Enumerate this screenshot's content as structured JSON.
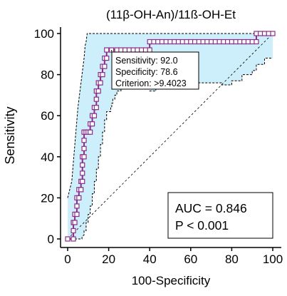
{
  "colors": {
    "ci_fill": "#cdeefb",
    "ci_line": "#000000",
    "roc_line": "#8b2b8b",
    "marker_fill": "#ffffff",
    "reference_line": "#000000"
  },
  "chart_data": {
    "type": "line",
    "title": "(11β-OH-An)/11ß-OH-Et",
    "xlabel": "100-Specificity",
    "ylabel": "Sensitivity",
    "xlim": [
      0,
      100
    ],
    "ylim": [
      0,
      100
    ],
    "xticks": [
      0,
      20,
      40,
      60,
      80,
      100
    ],
    "yticks": [
      0,
      20,
      40,
      60,
      80,
      100
    ],
    "grid": false,
    "series": [
      {
        "kind": "roc",
        "points": [
          [
            0,
            0
          ],
          [
            2.8,
            0
          ],
          [
            2.8,
            4
          ],
          [
            2.8,
            8
          ],
          [
            3.5,
            8
          ],
          [
            3.5,
            12
          ],
          [
            4.5,
            12
          ],
          [
            4.5,
            16
          ],
          [
            4.5,
            20
          ],
          [
            5.5,
            20
          ],
          [
            5.5,
            24
          ],
          [
            6.5,
            24
          ],
          [
            6.5,
            28
          ],
          [
            7.2,
            28
          ],
          [
            7.2,
            32
          ],
          [
            7.2,
            36
          ],
          [
            7.2,
            40
          ],
          [
            8,
            40
          ],
          [
            8,
            44
          ],
          [
            8,
            48
          ],
          [
            8,
            52
          ],
          [
            9,
            52
          ],
          [
            10,
            52
          ],
          [
            11,
            52
          ],
          [
            11,
            56
          ],
          [
            12,
            56
          ],
          [
            12,
            60
          ],
          [
            13,
            60
          ],
          [
            13,
            64
          ],
          [
            14,
            64
          ],
          [
            14,
            68
          ],
          [
            14,
            72
          ],
          [
            15,
            72
          ],
          [
            15,
            76
          ],
          [
            16,
            76
          ],
          [
            16,
            80
          ],
          [
            17,
            80
          ],
          [
            17,
            84
          ],
          [
            18,
            84
          ],
          [
            18,
            88
          ],
          [
            19,
            88
          ],
          [
            19,
            92
          ],
          [
            21.4,
            92
          ],
          [
            24,
            92
          ],
          [
            26,
            92
          ],
          [
            28,
            92
          ],
          [
            30,
            92
          ],
          [
            32,
            92
          ],
          [
            34,
            92
          ],
          [
            36,
            92
          ],
          [
            38,
            92
          ],
          [
            40,
            92
          ],
          [
            40,
            96
          ],
          [
            42,
            96
          ],
          [
            44,
            96
          ],
          [
            46,
            96
          ],
          [
            48,
            96
          ],
          [
            50,
            96
          ],
          [
            52,
            96
          ],
          [
            54,
            96
          ],
          [
            56,
            96
          ],
          [
            58,
            96
          ],
          [
            60,
            96
          ],
          [
            62,
            96
          ],
          [
            64,
            96
          ],
          [
            66,
            96
          ],
          [
            68,
            96
          ],
          [
            70,
            96
          ],
          [
            72,
            96
          ],
          [
            74,
            96
          ],
          [
            76,
            96
          ],
          [
            78,
            96
          ],
          [
            80,
            96
          ],
          [
            82,
            96
          ],
          [
            84,
            96
          ],
          [
            86,
            96
          ],
          [
            88,
            96
          ],
          [
            90,
            96
          ],
          [
            92,
            96
          ],
          [
            92,
            100
          ],
          [
            94,
            100
          ],
          [
            96,
            100
          ],
          [
            98,
            100
          ],
          [
            100,
            100
          ]
        ]
      },
      {
        "kind": "ci_upper",
        "points": [
          [
            0,
            20
          ],
          [
            2,
            28
          ],
          [
            3,
            40
          ],
          [
            4,
            52
          ],
          [
            5,
            64
          ],
          [
            6,
            72
          ],
          [
            7,
            80
          ],
          [
            8,
            88
          ],
          [
            8.5,
            94
          ],
          [
            9,
            96
          ],
          [
            9.5,
            100
          ],
          [
            100,
            100
          ]
        ]
      },
      {
        "kind": "ci_lower",
        "points": [
          [
            0,
            0
          ],
          [
            7,
            0
          ],
          [
            7,
            1
          ],
          [
            8,
            2
          ],
          [
            8,
            4
          ],
          [
            9,
            4
          ],
          [
            9,
            8
          ],
          [
            10,
            8
          ],
          [
            10,
            12
          ],
          [
            11,
            12
          ],
          [
            11,
            16
          ],
          [
            12,
            16
          ],
          [
            12,
            22
          ],
          [
            13,
            22
          ],
          [
            13,
            28
          ],
          [
            14,
            28
          ],
          [
            14,
            34
          ],
          [
            15,
            34
          ],
          [
            15,
            40
          ],
          [
            16,
            40
          ],
          [
            16,
            46
          ],
          [
            17,
            46
          ],
          [
            17,
            52
          ],
          [
            18,
            52
          ],
          [
            18,
            58
          ],
          [
            19,
            58
          ],
          [
            19,
            62
          ],
          [
            21,
            62
          ],
          [
            21,
            64
          ],
          [
            21.5,
            64
          ],
          [
            21.5,
            66
          ],
          [
            22,
            66
          ],
          [
            22,
            68
          ],
          [
            23,
            68
          ],
          [
            23,
            70
          ],
          [
            24,
            70
          ],
          [
            24,
            72
          ],
          [
            26,
            72
          ],
          [
            26,
            73
          ],
          [
            28,
            73
          ],
          [
            28,
            74
          ],
          [
            29,
            74
          ],
          [
            29,
            75
          ],
          [
            30,
            75
          ],
          [
            30,
            76
          ],
          [
            34,
            76
          ],
          [
            34,
            78
          ],
          [
            40,
            78
          ],
          [
            40,
            72
          ],
          [
            43,
            72
          ],
          [
            43,
            75
          ],
          [
            55,
            75
          ],
          [
            55,
            76
          ],
          [
            75,
            76
          ],
          [
            75,
            75
          ],
          [
            80,
            75
          ],
          [
            80,
            77
          ],
          [
            85,
            77
          ],
          [
            85,
            80
          ],
          [
            90,
            80
          ],
          [
            90,
            82
          ],
          [
            92,
            82
          ],
          [
            92,
            85
          ],
          [
            96,
            85
          ],
          [
            96,
            88
          ],
          [
            100,
            88
          ]
        ]
      },
      {
        "kind": "reference",
        "points": [
          [
            0,
            0
          ],
          [
            100,
            100
          ]
        ]
      }
    ],
    "annotations": {
      "criterion_box": {
        "anchor": [
          21.4,
          92
        ],
        "lines": [
          "Sensitivity: 92.0",
          "Specificity: 78.6",
          "Criterion: >9.4023"
        ]
      },
      "auc_box": {
        "lines": [
          "AUC = 0.846",
          "P < 0.001"
        ]
      }
    }
  }
}
